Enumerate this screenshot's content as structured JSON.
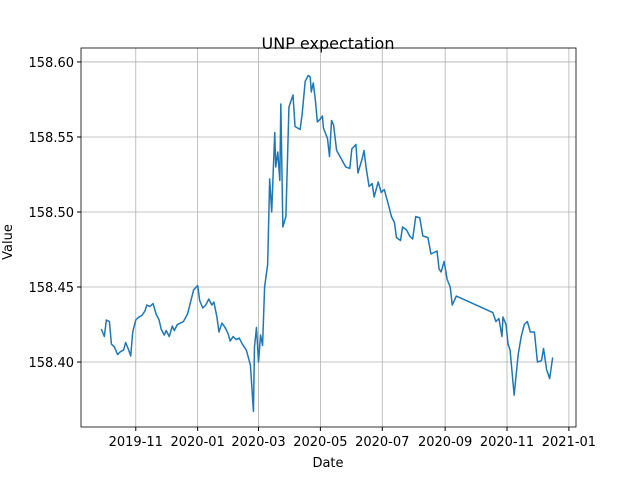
{
  "chart_data": {
    "type": "line",
    "title": "UNP expectation",
    "x_label": "Date",
    "y_label": "Value",
    "grid": true,
    "xlim": [
      18147,
      18635
    ],
    "xticks": [
      {
        "value": 18201,
        "label": "2019-11"
      },
      {
        "value": 18262,
        "label": "2020-01"
      },
      {
        "value": 18322,
        "label": "2020-03"
      },
      {
        "value": 18383,
        "label": "2020-05"
      },
      {
        "value": 18444,
        "label": "2020-07"
      },
      {
        "value": 18506,
        "label": "2020-09"
      },
      {
        "value": 18567,
        "label": "2020-11"
      },
      {
        "value": 18628,
        "label": "2021-01"
      }
    ],
    "ylim": [
      158.3567,
      158.6093
    ],
    "yticks": [
      {
        "value": 158.4,
        "label": "158.40"
      },
      158.45,
      {
        "value": 158.5,
        "label": "158.50"
      },
      158.55,
      {
        "value": 158.6,
        "label": "158.60"
      }
    ],
    "x": [
      18167,
      18170,
      18172,
      18175,
      18177,
      18180,
      18183,
      18186,
      18189,
      18191,
      18194,
      18196,
      18198,
      18201,
      18204,
      18207,
      18210,
      18212,
      18215,
      18218,
      18221,
      18224,
      18226,
      18229,
      18231,
      18234,
      18237,
      18239,
      18242,
      18248,
      18252,
      18255,
      18258,
      18262,
      18264,
      18267,
      18270,
      18273,
      18276,
      18278,
      18281,
      18283,
      18286,
      18289,
      18292,
      18294,
      18297,
      18300,
      18303,
      18306,
      18310,
      18314,
      18317,
      18318,
      18320,
      18322,
      18324,
      18326,
      18328,
      18331,
      18333,
      18335,
      18338,
      18339,
      18341,
      18343,
      18344,
      18346,
      18349,
      18352,
      18356,
      18358,
      18363,
      18365,
      18368,
      18371,
      18373,
      18374,
      18376,
      18378,
      18380,
      18383,
      18385,
      18386,
      18390,
      18392,
      18394,
      18396,
      18399,
      18404,
      18408,
      18412,
      18414,
      18418,
      18420,
      18424,
      18426,
      18428,
      18431,
      18434,
      18436,
      18440,
      18443,
      18446,
      18450,
      18453,
      18456,
      18458,
      18462,
      18464,
      18468,
      18471,
      18474,
      18477,
      18481,
      18484,
      18489,
      18492,
      18495,
      18498,
      18500,
      18502,
      18505,
      18508,
      18511,
      18513,
      18517,
      18553,
      18556,
      18559,
      18562,
      18563,
      18566,
      18568,
      18570,
      18574,
      18578,
      18581,
      18584,
      18587,
      18590,
      18594,
      18597,
      18601,
      18603,
      18606,
      18609,
      18612
    ],
    "series": [
      {
        "name": "UNP",
        "color": "#1f77b4",
        "values": [
          158.422,
          158.417,
          158.428,
          158.427,
          158.412,
          158.41,
          158.405,
          158.407,
          158.408,
          158.413,
          158.408,
          158.404,
          158.42,
          158.428,
          158.43,
          158.431,
          158.434,
          158.438,
          158.437,
          158.439,
          158.432,
          158.428,
          158.422,
          158.418,
          158.421,
          158.417,
          158.424,
          158.421,
          158.425,
          158.427,
          158.432,
          158.44,
          158.448,
          158.451,
          158.441,
          158.436,
          158.438,
          158.442,
          158.438,
          158.44,
          158.43,
          158.42,
          158.426,
          158.423,
          158.419,
          158.414,
          158.417,
          158.415,
          158.416,
          158.412,
          158.408,
          158.398,
          158.367,
          158.41,
          158.423,
          158.4,
          158.418,
          158.411,
          158.45,
          158.465,
          158.522,
          158.5,
          158.553,
          158.53,
          158.54,
          158.521,
          158.572,
          158.49,
          158.497,
          158.57,
          158.578,
          158.557,
          158.555,
          158.565,
          158.587,
          158.591,
          158.59,
          158.58,
          158.586,
          158.575,
          158.56,
          158.562,
          158.564,
          158.556,
          158.549,
          158.537,
          158.561,
          158.558,
          158.541,
          158.535,
          158.53,
          158.529,
          158.542,
          158.545,
          158.526,
          158.535,
          158.541,
          158.53,
          158.517,
          158.519,
          158.51,
          158.52,
          158.513,
          158.515,
          158.505,
          158.497,
          158.493,
          158.483,
          158.481,
          158.49,
          158.488,
          158.484,
          158.482,
          158.497,
          158.496,
          158.484,
          158.483,
          158.472,
          158.473,
          158.474,
          158.462,
          158.46,
          158.467,
          158.455,
          158.45,
          158.438,
          158.444,
          158.433,
          158.427,
          158.429,
          158.417,
          158.43,
          158.425,
          158.412,
          158.408,
          158.378,
          158.405,
          158.417,
          158.425,
          158.427,
          158.42,
          158.42,
          158.4,
          158.401,
          158.409,
          158.395,
          158.389,
          158.403
        ]
      }
    ]
  }
}
